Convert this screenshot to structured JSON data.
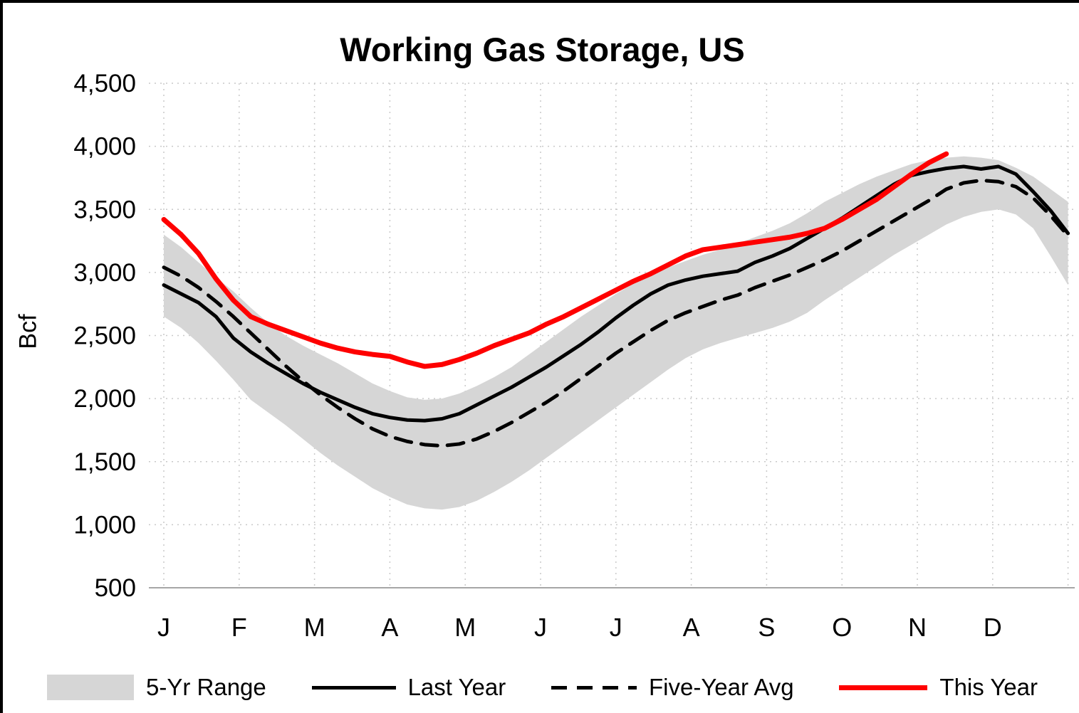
{
  "chart": {
    "title": "Working Gas Storage, US",
    "ylabel": "Bcf",
    "colors": {
      "range": "#d6d6d6",
      "last_year": "#000000",
      "five_year_avg": "#000000",
      "this_year": "#fe0000",
      "gridline": "#c9c9c9",
      "axis": "#a6a6a6",
      "text": "#000000"
    },
    "y_ticks": [
      {
        "value": 4500,
        "label": "4,500"
      },
      {
        "value": 4000,
        "label": "4,000"
      },
      {
        "value": 3500,
        "label": "3,500"
      },
      {
        "value": 3000,
        "label": "3,000"
      },
      {
        "value": 2500,
        "label": "2,500"
      },
      {
        "value": 2000,
        "label": "2,000"
      },
      {
        "value": 1500,
        "label": "1,500"
      },
      {
        "value": 1000,
        "label": "1,000"
      },
      {
        "value": 500,
        "label": "500"
      }
    ]
  },
  "chart_data": {
    "type": "line",
    "title": "Working Gas Storage, US",
    "xlabel": "",
    "ylabel": "Bcf",
    "ylim": [
      500,
      4500
    ],
    "x_axis": "weekly observations, January through December",
    "months": [
      "J",
      "F",
      "M",
      "A",
      "M",
      "J",
      "J",
      "A",
      "S",
      "O",
      "N",
      "D"
    ],
    "grid": "dotted",
    "legend_position": "bottom",
    "series": [
      {
        "name": "5-Yr Range",
        "id": "five-year-range",
        "type": "band",
        "color": "#d6d6d6",
        "hi": [
          3300,
          3200,
          3080,
          2960,
          2850,
          2720,
          2600,
          2500,
          2420,
          2350,
          2280,
          2200,
          2120,
          2060,
          2010,
          1990,
          2000,
          2040,
          2100,
          2170,
          2250,
          2350,
          2450,
          2550,
          2650,
          2740,
          2830,
          2910,
          2980,
          3040,
          3090,
          3140,
          3180,
          3230,
          3280,
          3330,
          3390,
          3470,
          3560,
          3630,
          3700,
          3760,
          3810,
          3860,
          3890,
          3910,
          3920,
          3910,
          3890,
          3830,
          3760,
          3660,
          3560
        ],
        "lo": [
          2650,
          2560,
          2440,
          2300,
          2150,
          1990,
          1890,
          1790,
          1680,
          1570,
          1470,
          1380,
          1290,
          1220,
          1160,
          1130,
          1120,
          1140,
          1190,
          1260,
          1340,
          1430,
          1530,
          1630,
          1730,
          1830,
          1930,
          2030,
          2130,
          2230,
          2320,
          2390,
          2440,
          2480,
          2520,
          2560,
          2610,
          2680,
          2780,
          2870,
          2960,
          3050,
          3140,
          3220,
          3300,
          3380,
          3440,
          3480,
          3500,
          3460,
          3350,
          3130,
          2900
        ]
      },
      {
        "name": "Last Year",
        "id": "last-year",
        "type": "line",
        "color": "#000000",
        "width": 5,
        "dash": "",
        "values": [
          2900,
          2830,
          2760,
          2650,
          2480,
          2370,
          2280,
          2200,
          2120,
          2050,
          1990,
          1930,
          1880,
          1850,
          1830,
          1825,
          1840,
          1880,
          1950,
          2020,
          2090,
          2170,
          2250,
          2340,
          2430,
          2530,
          2640,
          2740,
          2830,
          2900,
          2940,
          2970,
          2990,
          3010,
          3080,
          3130,
          3190,
          3270,
          3350,
          3430,
          3520,
          3610,
          3700,
          3770,
          3800,
          3825,
          3840,
          3820,
          3840,
          3780,
          3640,
          3490,
          3310
        ]
      },
      {
        "name": "Five-Year Avg",
        "id": "five-year-avg",
        "type": "line",
        "color": "#000000",
        "width": 5,
        "dash": "23 14",
        "values": [
          3040,
          2970,
          2880,
          2770,
          2650,
          2520,
          2390,
          2260,
          2140,
          2030,
          1930,
          1840,
          1760,
          1700,
          1660,
          1635,
          1625,
          1640,
          1680,
          1740,
          1810,
          1890,
          1970,
          2060,
          2160,
          2260,
          2360,
          2450,
          2540,
          2620,
          2680,
          2730,
          2780,
          2820,
          2880,
          2930,
          2980,
          3040,
          3100,
          3170,
          3250,
          3330,
          3410,
          3490,
          3570,
          3660,
          3710,
          3730,
          3720,
          3680,
          3590,
          3450,
          3290
        ]
      },
      {
        "name": "This Year",
        "id": "this-year",
        "type": "line",
        "color": "#fe0000",
        "width": 7,
        "dash": "",
        "values": [
          3420,
          3300,
          3150,
          2950,
          2780,
          2650,
          2590,
          2540,
          2490,
          2440,
          2400,
          2370,
          2350,
          2335,
          2290,
          2255,
          2270,
          2310,
          2360,
          2420,
          2470,
          2520,
          2590,
          2650,
          2720,
          2790,
          2860,
          2930,
          2990,
          3060,
          3130,
          3180,
          3200,
          3220,
          3240,
          3260,
          3280,
          3310,
          3350,
          3420,
          3500,
          3580,
          3680,
          3780,
          3870,
          3940
        ]
      }
    ]
  },
  "legend": {
    "items": [
      {
        "label": "5-Yr Range"
      },
      {
        "label": "Last Year"
      },
      {
        "label": "Five-Year Avg"
      },
      {
        "label": "This Year"
      }
    ]
  }
}
